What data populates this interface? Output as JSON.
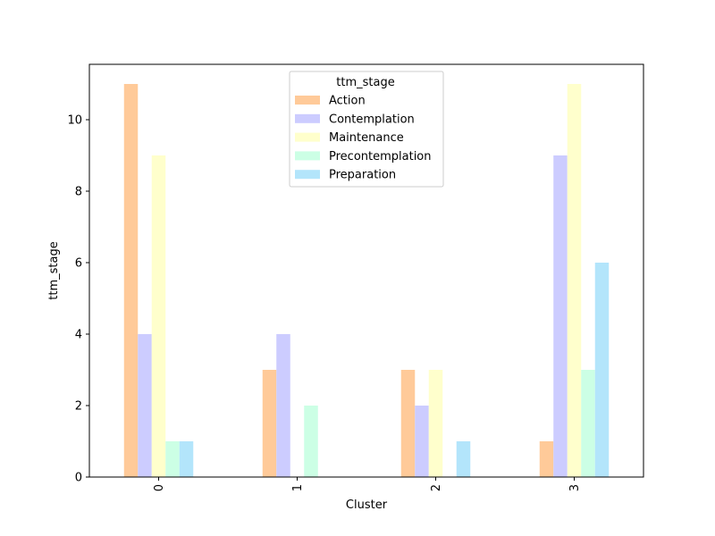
{
  "chart_data": {
    "type": "bar",
    "title": "",
    "xlabel": "Cluster",
    "ylabel": "ttm_stage",
    "categories": [
      "0",
      "1",
      "2",
      "3"
    ],
    "ylim": [
      0,
      11.55
    ],
    "yticks": [
      0,
      2,
      4,
      6,
      8,
      10
    ],
    "grid": false,
    "legend": {
      "title": "ttm_stage",
      "placement": "upper center"
    },
    "series": [
      {
        "name": "Action",
        "color": "#FFCA99",
        "values": [
          11,
          3,
          3,
          1
        ]
      },
      {
        "name": "Contemplation",
        "color": "#CCCCFF",
        "values": [
          4,
          4,
          2,
          9
        ]
      },
      {
        "name": "Maintenance",
        "color": "#FFFFCC",
        "values": [
          9,
          0,
          3,
          11
        ]
      },
      {
        "name": "Precontemplation",
        "color": "#CCFFE5",
        "values": [
          1,
          2,
          0,
          3
        ]
      },
      {
        "name": "Preparation",
        "color": "#B3E5FB",
        "values": [
          1,
          0,
          1,
          6
        ]
      }
    ]
  }
}
